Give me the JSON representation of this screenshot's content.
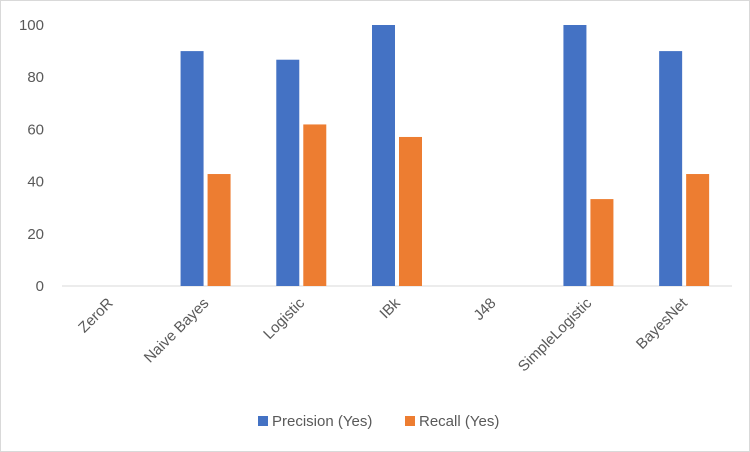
{
  "chart_data": {
    "type": "bar",
    "title": "",
    "xlabel": "",
    "ylabel": "",
    "ylim": [
      0,
      100
    ],
    "yticks": [
      "0",
      "20",
      "40",
      "60",
      "80",
      "100"
    ],
    "categories": [
      "ZeroR",
      "Naive Bayes",
      "Logistic",
      "IBk",
      "J48",
      "SimpleLogistic",
      "BayesNet"
    ],
    "series": [
      {
        "name": "Precision (Yes)",
        "color": "#4472c4",
        "values": [
          0,
          90,
          86.7,
          100,
          0,
          100,
          90
        ]
      },
      {
        "name": "Recall (Yes)",
        "color": "#ed7d31",
        "values": [
          0,
          42.9,
          61.9,
          57.1,
          0,
          33.3,
          42.9
        ]
      }
    ],
    "grid": false,
    "legend": "bottom"
  }
}
